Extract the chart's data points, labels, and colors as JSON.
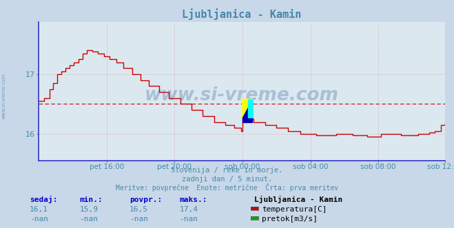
{
  "title": "Ljubljanica - Kamin",
  "bg_color": "#c8d8e8",
  "plot_bg_color": "#dce8f0",
  "line_color": "#cc0000",
  "avg_line_color": "#cc0000",
  "grid_color": "#cc8888",
  "axis_color": "#3333cc",
  "text_color": "#4488aa",
  "stat_label_color": "#0000cc",
  "watermark": "www.si-vreme.com",
  "subtitle1": "Slovenija / reke in morje.",
  "subtitle2": "zadnji dan / 5 minut.",
  "subtitle3": "Meritve: povprečne  Enote: metrične  Črta: prva meritev",
  "legend_title": "Ljubljanica - Kamin",
  "legend_items": [
    "temperatura[C]",
    "pretok[m3/s]"
  ],
  "legend_colors": [
    "#cc0000",
    "#00aa00"
  ],
  "stats_labels": [
    "sedaj:",
    "min.:",
    "povpr.:",
    "maks.:"
  ],
  "stats_temp": [
    "16,1",
    "15,9",
    "16,5",
    "17,4"
  ],
  "stats_flow": [
    "-nan",
    "-nan",
    "-nan",
    "-nan"
  ],
  "ylim_min": 15.55,
  "ylim_max": 17.88,
  "yticks": [
    16,
    17
  ],
  "avg_value": 16.5,
  "time_labels": [
    "pet 16:00",
    "pet 20:00",
    "sob 00:00",
    "sob 04:00",
    "sob 08:00",
    "sob 12:00"
  ],
  "time_positions": [
    48,
    96,
    144,
    192,
    240,
    287
  ]
}
